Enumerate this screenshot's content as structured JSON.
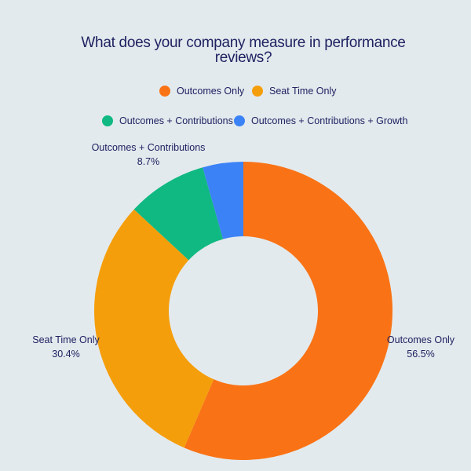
{
  "chart_data": {
    "type": "pie",
    "title_lines": [
      "What does your company measure in performance",
      "reviews?"
    ],
    "donut": true,
    "legend_position": "top",
    "slices": [
      {
        "label": "Outcomes Only",
        "value": 56.5,
        "value_label": "56.5%",
        "color": "#f97316"
      },
      {
        "label": "Seat Time Only",
        "value": 30.4,
        "value_label": "30.4%",
        "color": "#f59e0b"
      },
      {
        "label": "Outcomes + Contributions",
        "value": 8.7,
        "value_label": "8.7%",
        "color": "#10b981"
      },
      {
        "label": "Outcomes + Contributions + Growth",
        "value": 4.4,
        "value_label": "",
        "color": "#3b82f6"
      }
    ],
    "legend": [
      {
        "label": "Outcomes Only",
        "color": "#f97316"
      },
      {
        "label": "Seat Time Only",
        "color": "#f59e0b"
      },
      {
        "label": "Outcomes + Contributions",
        "color": "#10b981"
      },
      {
        "label": "Outcomes + Contributions + Growth",
        "color": "#3b82f6"
      }
    ],
    "background": "#e3eaee",
    "text_color": "#1f2260"
  }
}
